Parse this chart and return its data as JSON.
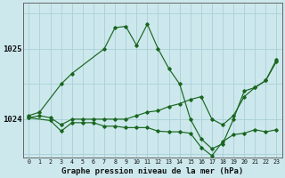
{
  "xlabel_label": "Graphe pression niveau de la mer (hPa)",
  "bg_color": "#cce8ec",
  "grid_color": "#aad0d8",
  "line_color": "#1a6620",
  "x_ticks": [
    0,
    1,
    2,
    3,
    4,
    5,
    6,
    7,
    8,
    9,
    10,
    11,
    12,
    13,
    14,
    15,
    16,
    17,
    18,
    19,
    20,
    21,
    22,
    23
  ],
  "y_ticks": [
    1024,
    1025
  ],
  "ylim": [
    1023.45,
    1025.65
  ],
  "xlim": [
    -0.5,
    23.5
  ],
  "series": [
    {
      "x": [
        0,
        1,
        3,
        4,
        7,
        8,
        9,
        10,
        11,
        12,
        13,
        14,
        15,
        16,
        17,
        18,
        19,
        20,
        21,
        22,
        23
      ],
      "y": [
        1024.05,
        1024.1,
        1024.5,
        1024.65,
        1025.0,
        1025.3,
        1025.32,
        1025.05,
        1025.35,
        1025.0,
        1024.72,
        1024.5,
        1024.0,
        1023.72,
        1023.58,
        1023.65,
        1024.0,
        1024.4,
        1024.45,
        1024.55,
        1024.82
      ]
    },
    {
      "x": [
        0,
        2,
        3,
        4,
        5,
        6,
        7,
        8,
        9,
        10,
        11,
        12,
        13,
        14,
        15,
        16,
        17,
        18,
        19,
        20,
        21,
        22,
        23
      ],
      "y": [
        1024.02,
        1023.98,
        1023.83,
        1023.95,
        1023.95,
        1023.95,
        1023.9,
        1023.9,
        1023.88,
        1023.88,
        1023.88,
        1023.83,
        1023.82,
        1023.82,
        1023.8,
        1023.6,
        1023.48,
        1023.68,
        1023.78,
        1023.8,
        1023.85,
        1023.82,
        1023.85
      ]
    },
    {
      "x": [
        0,
        1,
        2,
        3,
        4,
        5,
        6,
        7,
        8,
        9,
        10,
        11,
        12,
        13,
        14,
        15,
        16,
        17,
        18,
        19,
        20,
        21,
        22,
        23
      ],
      "y": [
        1024.02,
        1024.05,
        1024.02,
        1023.92,
        1024.0,
        1024.0,
        1024.0,
        1024.0,
        1024.0,
        1024.0,
        1024.05,
        1024.1,
        1024.12,
        1024.18,
        1024.22,
        1024.28,
        1024.32,
        1024.0,
        1023.92,
        1024.05,
        1024.32,
        1024.45,
        1024.55,
        1024.85
      ]
    }
  ]
}
